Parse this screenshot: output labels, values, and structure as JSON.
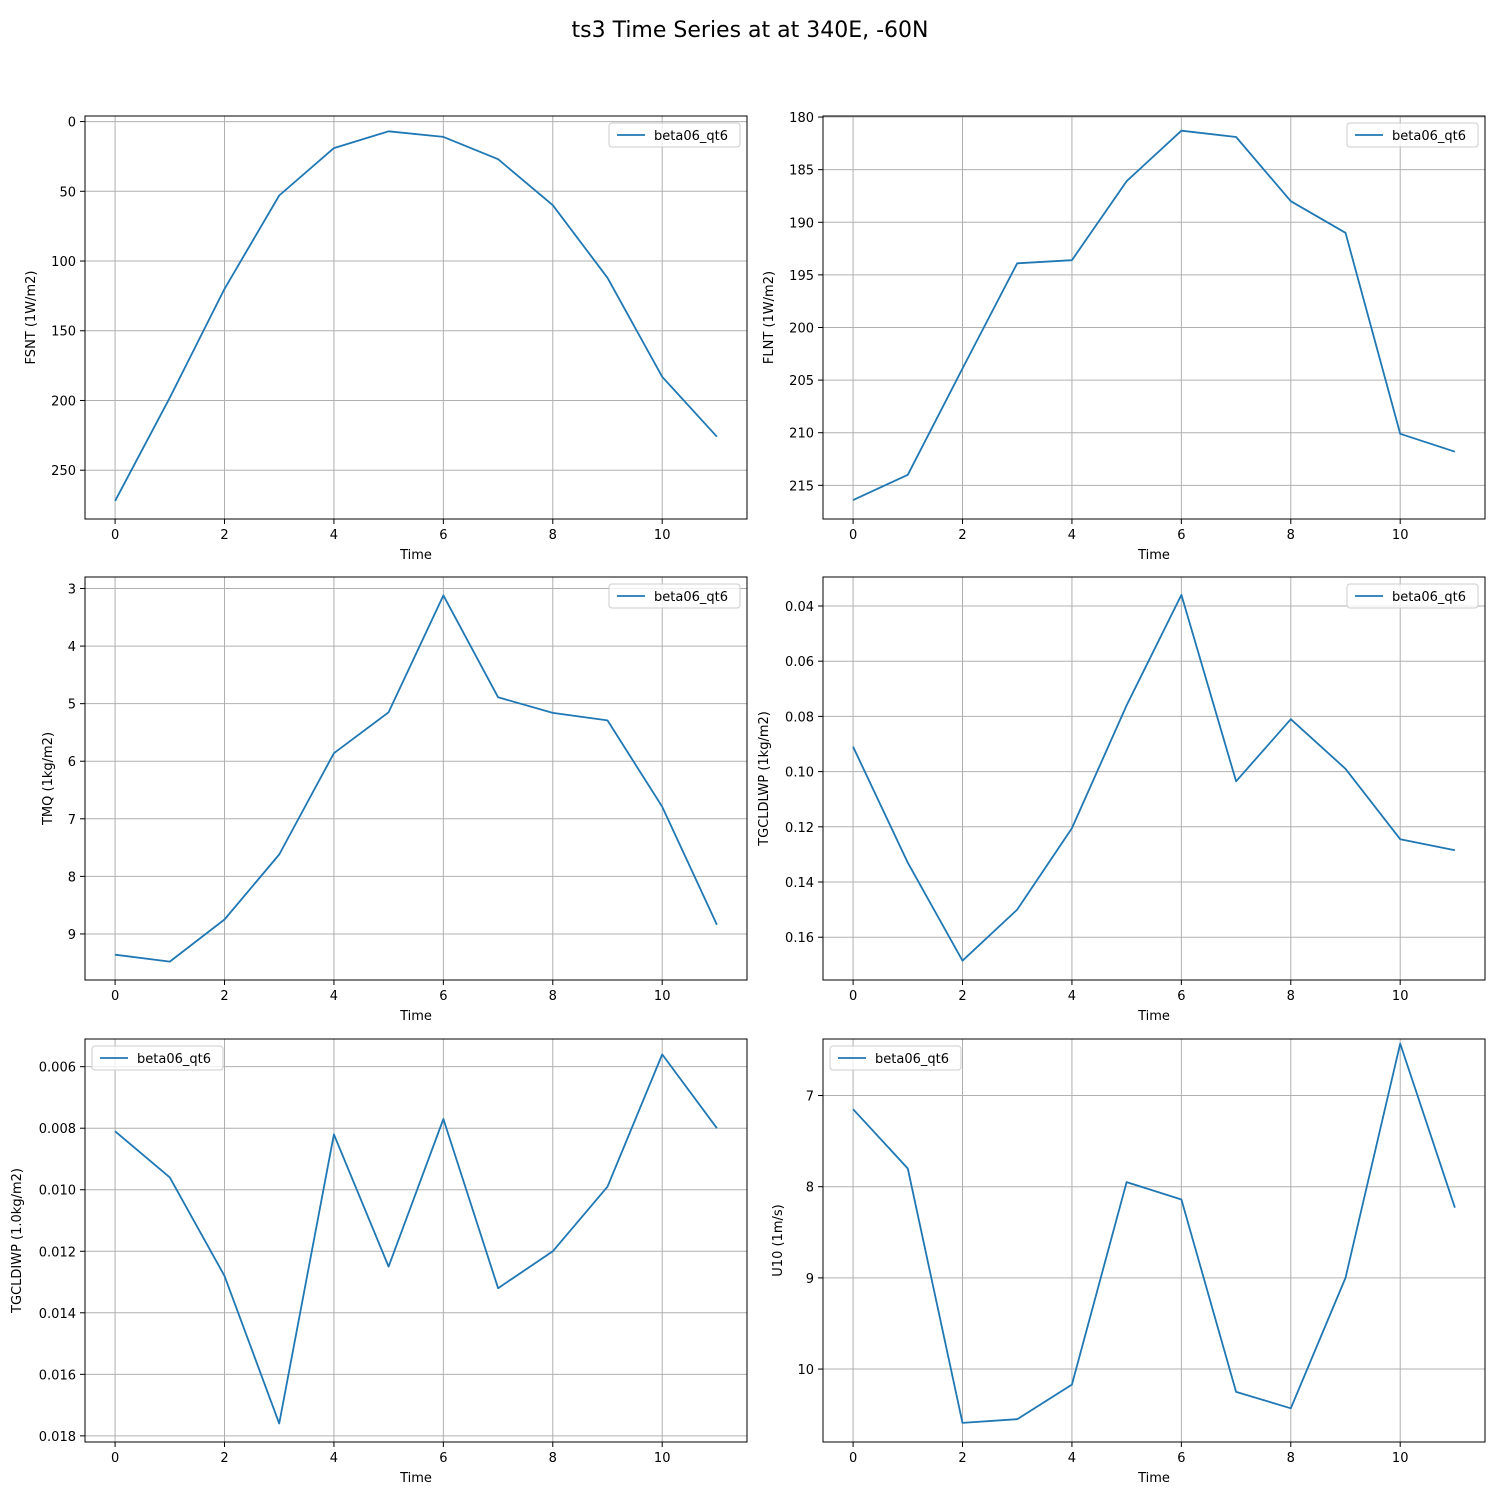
{
  "figure_title": "ts3 Time Series at at 340E, -60N",
  "line_color": "#1f77b4",
  "grid_color": "#b0b0b0",
  "chart_data": [
    {
      "type": "line",
      "xlabel": "Time",
      "ylabel": "FSNT (1W/m2)",
      "x": [
        0,
        1,
        2,
        3,
        4,
        5,
        6,
        7,
        8,
        9,
        10,
        11
      ],
      "xlim": [
        -0.55,
        11.55
      ],
      "xticks": [
        0,
        2,
        4,
        6,
        8,
        10
      ],
      "ylim": [
        285,
        -4
      ],
      "yticks": [
        0,
        50,
        100,
        150,
        200,
        250
      ],
      "ytick_labels": [
        "0",
        "50",
        "100",
        "150",
        "200",
        "250"
      ],
      "y_inverted": true,
      "grid": true,
      "legend_position": "top-right",
      "series": [
        {
          "name": "beta06_qt6",
          "values": [
            272,
            198,
            120,
            53,
            19,
            7,
            11,
            27,
            60,
            112,
            183,
            226
          ]
        }
      ]
    },
    {
      "type": "line",
      "xlabel": "Time",
      "ylabel": "FLNT (1W/m2)",
      "x": [
        0,
        1,
        2,
        3,
        4,
        5,
        6,
        7,
        8,
        9,
        10,
        11
      ],
      "xlim": [
        -0.55,
        11.55
      ],
      "xticks": [
        0,
        2,
        4,
        6,
        8,
        10
      ],
      "ylim": [
        218.2,
        179.9
      ],
      "yticks": [
        180,
        185,
        190,
        195,
        200,
        205,
        210,
        215
      ],
      "ytick_labels": [
        "180",
        "185",
        "190",
        "195",
        "200",
        "205",
        "210",
        "215"
      ],
      "y_inverted": true,
      "grid": true,
      "legend_position": "top-right",
      "series": [
        {
          "name": "beta06_qt6",
          "values": [
            216.4,
            214.0,
            203.9,
            193.9,
            193.6,
            186.1,
            181.3,
            181.9,
            188.0,
            191.0,
            210.1,
            211.8
          ]
        }
      ]
    },
    {
      "type": "line",
      "xlabel": "Time",
      "ylabel": "TMQ (1kg/m2)",
      "x": [
        0,
        1,
        2,
        3,
        4,
        5,
        6,
        7,
        8,
        9,
        10,
        11
      ],
      "xlim": [
        -0.55,
        11.55
      ],
      "xticks": [
        0,
        2,
        4,
        6,
        8,
        10
      ],
      "ylim": [
        9.8,
        2.8
      ],
      "yticks": [
        3,
        4,
        5,
        6,
        7,
        8,
        9
      ],
      "ytick_labels": [
        "3",
        "4",
        "5",
        "6",
        "7",
        "8",
        "9"
      ],
      "y_inverted": true,
      "grid": true,
      "legend_position": "top-right",
      "series": [
        {
          "name": "beta06_qt6",
          "values": [
            9.36,
            9.48,
            8.75,
            7.62,
            5.86,
            5.15,
            3.12,
            4.89,
            5.16,
            5.29,
            6.79,
            8.84
          ]
        }
      ]
    },
    {
      "type": "line",
      "xlabel": "Time",
      "ylabel": "TGCLDLWP (1kg/m2)",
      "x": [
        0,
        1,
        2,
        3,
        4,
        5,
        6,
        7,
        8,
        9,
        10,
        11
      ],
      "xlim": [
        -0.55,
        11.55
      ],
      "xticks": [
        0,
        2,
        4,
        6,
        8,
        10
      ],
      "ylim": [
        0.1755,
        0.0295
      ],
      "yticks": [
        0.04,
        0.06,
        0.08,
        0.1,
        0.12,
        0.14,
        0.16
      ],
      "ytick_labels": [
        "0.04",
        "0.06",
        "0.08",
        "0.10",
        "0.12",
        "0.14",
        "0.16"
      ],
      "y_inverted": true,
      "grid": true,
      "legend_position": "top-right",
      "series": [
        {
          "name": "beta06_qt6",
          "values": [
            0.091,
            0.133,
            0.1685,
            0.15,
            0.1205,
            0.076,
            0.036,
            0.1035,
            0.081,
            0.099,
            0.1245,
            0.1285
          ]
        }
      ]
    },
    {
      "type": "line",
      "xlabel": "Time",
      "ylabel": "TGCLDIWP (1.0kg/m2)",
      "x": [
        0,
        1,
        2,
        3,
        4,
        5,
        6,
        7,
        8,
        9,
        10,
        11
      ],
      "xlim": [
        -0.55,
        11.55
      ],
      "xticks": [
        0,
        2,
        4,
        6,
        8,
        10
      ],
      "ylim": [
        0.0182,
        0.0051
      ],
      "yticks": [
        0.006,
        0.008,
        0.01,
        0.012,
        0.014,
        0.016,
        0.018
      ],
      "ytick_labels": [
        "0.006",
        "0.008",
        "0.010",
        "0.012",
        "0.014",
        "0.016",
        "0.018"
      ],
      "y_inverted": true,
      "grid": true,
      "legend_position": "top-left",
      "series": [
        {
          "name": "beta06_qt6",
          "values": [
            0.0081,
            0.0096,
            0.0128,
            0.0176,
            0.0082,
            0.0125,
            0.0077,
            0.0132,
            0.012,
            0.0099,
            0.0056,
            0.008
          ]
        }
      ]
    },
    {
      "type": "line",
      "xlabel": "Time",
      "ylabel": "U10 (1m/s)",
      "x": [
        0,
        1,
        2,
        3,
        4,
        5,
        6,
        7,
        8,
        9,
        10,
        11
      ],
      "xlim": [
        -0.55,
        11.55
      ],
      "xticks": [
        0,
        2,
        4,
        6,
        8,
        10
      ],
      "ylim": [
        10.8,
        6.38
      ],
      "yticks": [
        7,
        8,
        9,
        10
      ],
      "ytick_labels": [
        "7",
        "8",
        "9",
        "10"
      ],
      "y_inverted": true,
      "grid": true,
      "legend_position": "top-left",
      "series": [
        {
          "name": "beta06_qt6",
          "values": [
            7.15,
            7.8,
            10.59,
            10.55,
            10.17,
            7.95,
            8.14,
            10.25,
            10.43,
            9.0,
            6.43,
            8.23
          ]
        }
      ]
    }
  ]
}
